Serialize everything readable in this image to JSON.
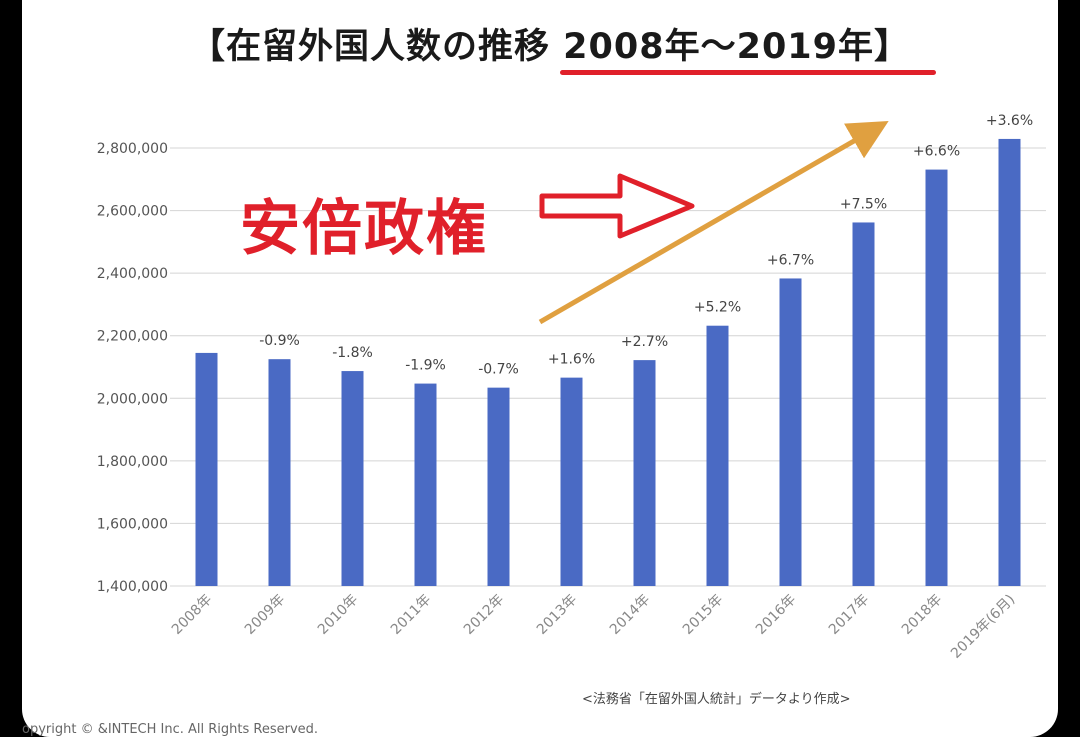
{
  "title": "【在留外国人数の推移 2008年〜2019年】",
  "overlay_text": "安倍政権",
  "source": "<法務省「在留外国人統計」データより作成>",
  "copyright": "opyright ©  &INTECH Inc. All Rights Reserved.",
  "colors": {
    "bar": "#4a6ac4",
    "accent": "#e0202a",
    "trend_arrow": "#e0a040"
  },
  "chart_data": {
    "type": "bar",
    "categories": [
      "2008年",
      "2009年",
      "2010年",
      "2011年",
      "2012年",
      "2013年",
      "2014年",
      "2015年",
      "2016年",
      "2017年",
      "2018年",
      "2019年(6月)"
    ],
    "values": [
      2145000,
      2125000,
      2087000,
      2047000,
      2034000,
      2066000,
      2122000,
      2232000,
      2383000,
      2562000,
      2731000,
      2829000
    ],
    "data_labels": [
      "",
      "-0.9%",
      "-1.8%",
      "-1.9%",
      "-0.7%",
      "+1.6%",
      "+2.7%",
      "+5.2%",
      "+6.7%",
      "+7.5%",
      "+6.6%",
      "+3.6%"
    ],
    "ylim": [
      1400000,
      2800000
    ],
    "yticks": [
      1400000,
      1600000,
      1800000,
      2000000,
      2200000,
      2400000,
      2600000,
      2800000
    ],
    "ytick_labels": [
      "1,400,000",
      "1,600,000",
      "1,800,000",
      "2,000,000",
      "2,200,000",
      "2,400,000",
      "2,600,000",
      "2,800,000"
    ],
    "grid": true,
    "xlabel": "",
    "ylabel": ""
  }
}
